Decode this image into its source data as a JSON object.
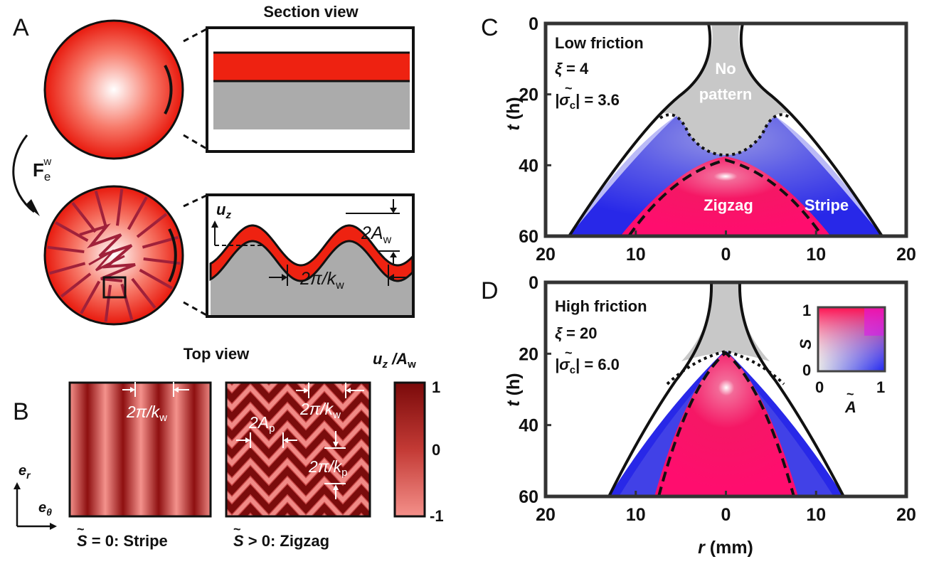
{
  "panels": {
    "A": {
      "letter": "A",
      "section_title": "Section view",
      "force_label": "F",
      "force_sub": "e",
      "force_sup": "w",
      "uz": "u",
      "uz_sub": "z",
      "amp": "2A",
      "amp_sub": "w",
      "wavelength": "2π/k",
      "wavelength_sub": "w"
    },
    "B": {
      "letter": "B",
      "top_title": "Top view",
      "colorbar_title": "u",
      "colorbar_title_sub": "z",
      "colorbar_title_rest": " /A",
      "colorbar_title_sub2": "w",
      "colorbar_ticks": [
        "1",
        "0",
        "-1"
      ],
      "er": "e",
      "er_sub": "r",
      "etheta": "e",
      "etheta_sub": "θ",
      "stripe_lambda": "2π/k",
      "stripe_lambda_sub": "w",
      "zig_lambda": "2π/k",
      "zig_lambda_sub": "w",
      "zig_amp": "2A",
      "zig_amp_sub": "p",
      "zig_kp": "2π/k",
      "zig_kp_sub": "p",
      "caption_stripe_sym": "S",
      "caption_stripe_rest": " = 0: Stripe",
      "caption_zig_sym": "S",
      "caption_zig_rest": " > 0: Zigzag"
    },
    "C": {
      "letter": "C",
      "line1": "Low friction",
      "xi_sym": "ξ",
      "xi_val": " = 4",
      "sigma_sym": "|σ",
      "sigma_sub": "c",
      "sigma_val": "| = 3.6",
      "no_pattern_1": "No",
      "no_pattern_2": "pattern",
      "zigzag": "Zigzag",
      "stripe": "Stripe"
    },
    "D": {
      "letter": "D",
      "line1": "High friction",
      "xi_sym": "ξ",
      "xi_val": " = 20",
      "sigma_sym": "|σ",
      "sigma_sub": "c",
      "sigma_val": "| = 6.0",
      "inset_y": "S",
      "inset_x": "A",
      "inset_ticks": [
        "1",
        "0",
        "0",
        "1"
      ]
    },
    "axes": {
      "y_label": "t",
      "y_unit": " (h)",
      "x_label": "r",
      "x_unit": " (mm)",
      "y_ticks": [
        "0",
        "20",
        "40",
        "60"
      ],
      "x_ticks": [
        "20",
        "10",
        "0",
        "10",
        "20"
      ]
    }
  },
  "chart_data": [
    {
      "type": "area",
      "panel": "C",
      "title": "Low friction",
      "xi": 4,
      "sigma_c": 3.6,
      "xlabel": "r (mm)",
      "ylabel": "t (h)",
      "xlim": [
        -20,
        20
      ],
      "ylim": [
        60,
        0
      ],
      "regions": [
        "No pattern",
        "Zigzag",
        "Stripe"
      ]
    },
    {
      "type": "area",
      "panel": "D",
      "title": "High friction",
      "xi": 20,
      "sigma_c": 6.0,
      "xlabel": "r (mm)",
      "ylabel": "t (h)",
      "xlim": [
        -20,
        20
      ],
      "ylim": [
        60,
        0
      ],
      "inset": {
        "xlabel": "A",
        "ylabel": "S",
        "xlim": [
          0,
          1
        ],
        "ylim": [
          0,
          1
        ]
      }
    }
  ],
  "colors": {
    "red": "#ee2211",
    "dark_red": "#8b0d0d",
    "gray": "#c8c8c8",
    "blue": "#1f23e6",
    "magenta": "#ff0d6e"
  }
}
